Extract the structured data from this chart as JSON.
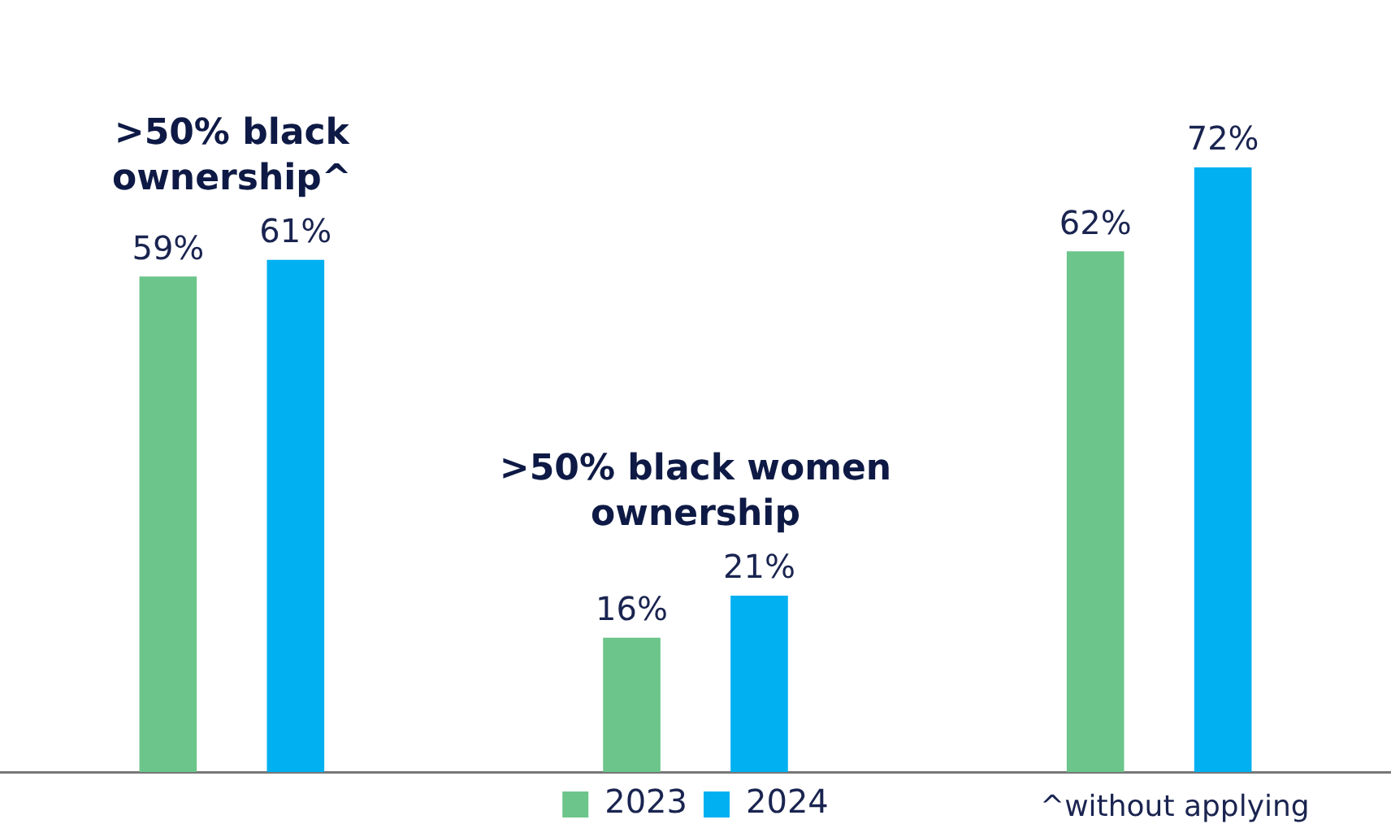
{
  "chart_data": {
    "type": "bar",
    "categories": [
      ">50% black ownership^",
      ">50% black women ownership",
      null
    ],
    "series": [
      {
        "name": "2023",
        "color": "#6cc58a",
        "values": [
          59,
          16,
          62
        ],
        "value_labels": [
          "59%",
          "16%",
          "62%"
        ]
      },
      {
        "name": "2024",
        "color": "#00b0f0",
        "values": [
          61,
          21,
          72
        ],
        "value_labels": [
          "61%",
          "21%",
          "72%"
        ]
      }
    ],
    "legend": "bottom",
    "annotations": [
      "^without applying"
    ]
  }
}
